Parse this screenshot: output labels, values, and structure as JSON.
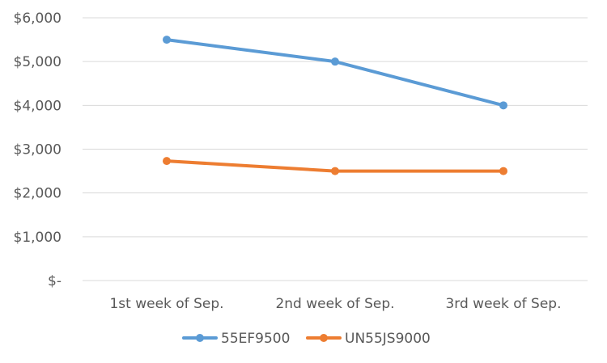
{
  "chart_data": {
    "type": "line",
    "title": "",
    "xlabel": "",
    "ylabel": "",
    "categories": [
      "1st week of Sep.",
      "2nd week of Sep.",
      "3rd week of Sep."
    ],
    "ylim": [
      0,
      6000
    ],
    "yticks": [
      {
        "value": 0,
        "label": "$-"
      },
      {
        "value": 1000,
        "label": "$1,000"
      },
      {
        "value": 2000,
        "label": "$2,000"
      },
      {
        "value": 3000,
        "label": "$3,000"
      },
      {
        "value": 4000,
        "label": "$4,000"
      },
      {
        "value": 5000,
        "label": "$5,000"
      },
      {
        "value": 6000,
        "label": "$6,000"
      }
    ],
    "grid": true,
    "legend_position": "bottom",
    "series": [
      {
        "name": "55EF9500",
        "color": "#5b9bd5",
        "values": [
          5500,
          5000,
          4000
        ]
      },
      {
        "name": "UN55JS9000",
        "color": "#ed7d31",
        "values": [
          2730,
          2500,
          2500
        ]
      }
    ]
  }
}
